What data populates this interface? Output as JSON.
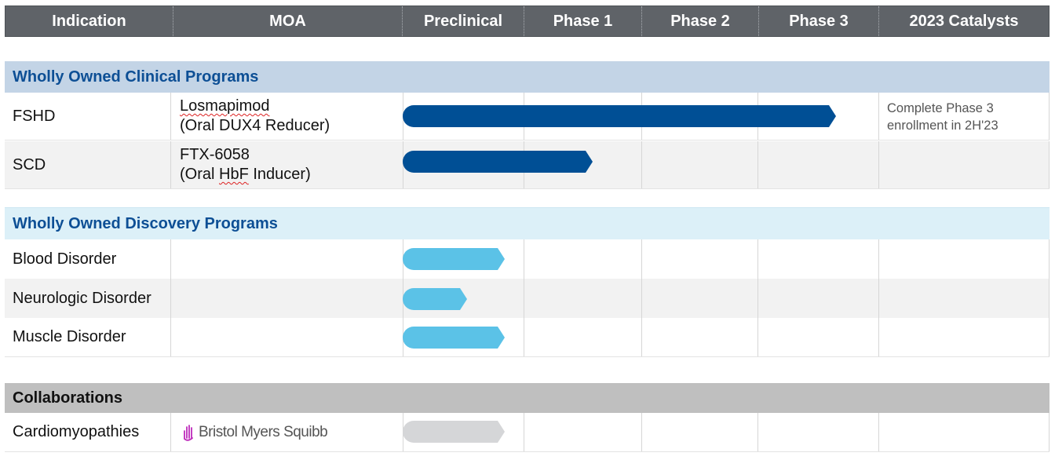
{
  "header": {
    "indication": "Indication",
    "moa": "MOA",
    "preclinical": "Preclinical",
    "phase1": "Phase 1",
    "phase2": "Phase 2",
    "phase3": "Phase 3",
    "catalysts": "2023 Catalysts"
  },
  "stages": [
    "Preclinical",
    "Phase 1",
    "Phase 2",
    "Phase 3"
  ],
  "sections": {
    "clinical": {
      "title": "Wholly Owned Clinical Programs",
      "rows": [
        {
          "indication": "FSHD",
          "moa_line1": "Losmapimod",
          "moa_line2": "(Oral DUX4 Reducer)",
          "progress_stage": "Phase 3",
          "catalyst_line1": "Complete Phase 3",
          "catalyst_line2": "enrollment in 2H'23"
        },
        {
          "indication": "SCD",
          "moa_line1": "FTX-6058",
          "moa_line2_a": "(Oral ",
          "moa_line2_b": "HbF",
          "moa_line2_c": " Inducer)",
          "progress_stage": "Phase 1"
        }
      ]
    },
    "discovery": {
      "title": "Wholly Owned Discovery Programs",
      "rows": [
        {
          "indication": "Blood Disorder",
          "progress_stage": "Preclinical"
        },
        {
          "indication": "Neurologic Disorder",
          "progress_stage": "Preclinical"
        },
        {
          "indication": "Muscle Disorder",
          "progress_stage": "Preclinical"
        }
      ]
    },
    "collaborations": {
      "title": "Collaborations",
      "rows": [
        {
          "indication": "Cardiomyopathies",
          "partner_logo_text": "Bristol Myers Squibb",
          "progress_stage": "Preclinical"
        }
      ]
    }
  },
  "colors": {
    "header_bg": "#5f6368",
    "clinical_band": "#c3d4e6",
    "discovery_band": "#dcf0f8",
    "collab_band": "#bfbfbf",
    "title_blue": "#0d4f95",
    "bar_dark": "#004f95",
    "bar_light": "#5bc2e7",
    "bar_gray": "#d5d6d8",
    "alt_row": "#f2f2f2",
    "bms_mark": "#be2bbb"
  }
}
